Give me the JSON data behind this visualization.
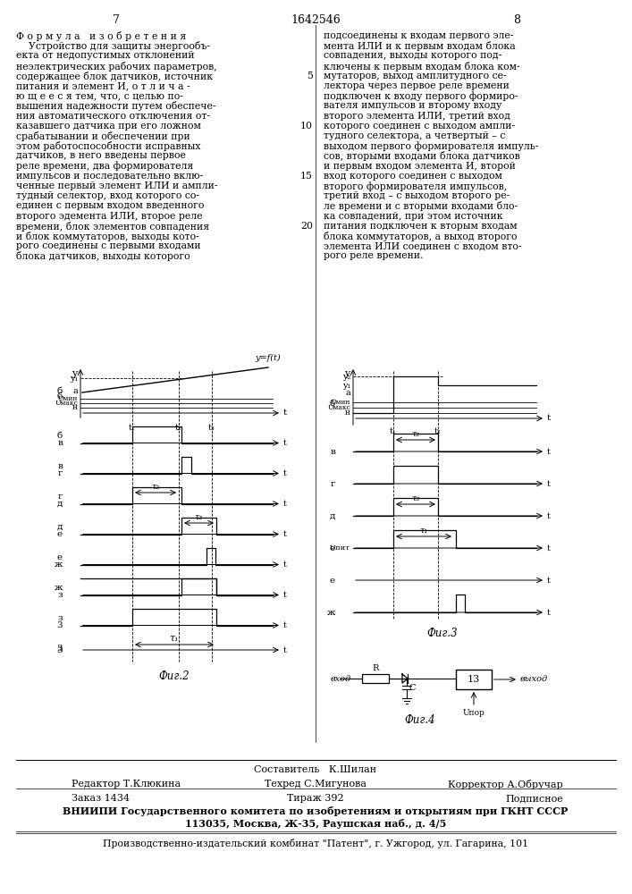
{
  "bg": "#ffffff",
  "page_left": "7",
  "page_center": "1642546",
  "page_right": "8",
  "left_col": [
    "Ф о р м у л а   и з о б р е т е н и я",
    "    Устройство для защиты энергообъ-",
    "екта от недопустимых отклонений",
    "неэлектрических рабочих параметров,",
    "содержащее блок датчиков, источник",
    "питания и элемент И, о т л и ч а -",
    "ю щ е е с я тем, что, с целью по-",
    "вышения надежности путем обеспече-",
    "ния автоматического отключения от-",
    "казавшего датчика при его ложном",
    "срабатывании и обеспечении при",
    "этом работоспособности исправных",
    "датчиков, в него введены первое",
    "реле времени, два формирователя",
    "импульсов и последовательно вклю-",
    "ченные первый элемент ИЛИ и ампли-",
    "тудный селектор, вход которого со-",
    "единен с первым входом введенного",
    "второго эдемента ИЛИ, второе реле",
    "времени, блок элементов совпадения",
    "и блок коммутаторов, выходы кото-",
    "рого соединены с первыми входами",
    "блока датчиков, выходы которого"
  ],
  "right_col": [
    "подсоединены к входам первого эле-",
    "мента ИЛИ и к первым входам блока",
    "совпадения, выходы которого под-",
    "ключены к первым входам блока ком-",
    "мутаторов, выход амплитудного се-",
    "лектора через первое реле времени",
    "подключен к входу первого формиро-",
    "вателя импульсов и второму входу",
    "второго элемента ИЛИ, третий вход",
    "которого соединен с выходом ампли-",
    "тудного селектора, а четвертый – с",
    "выходом первого формирователя импуль-",
    "сов, вторыми входами блока датчиков",
    "и первым входом элемента И, второй",
    "вход которого соединен с выходом",
    "второго формирователя импульсов,",
    "третий вход – с выходом второго ре-",
    "ле времени и с вторыми входами бло-",
    "ка совпадений, при этом источник",
    "питания подключен к вторым входам",
    "блока коммутаторов, а выход второго",
    "элемента ИЛИ соединен с входом вто-",
    "рого реле времени."
  ]
}
